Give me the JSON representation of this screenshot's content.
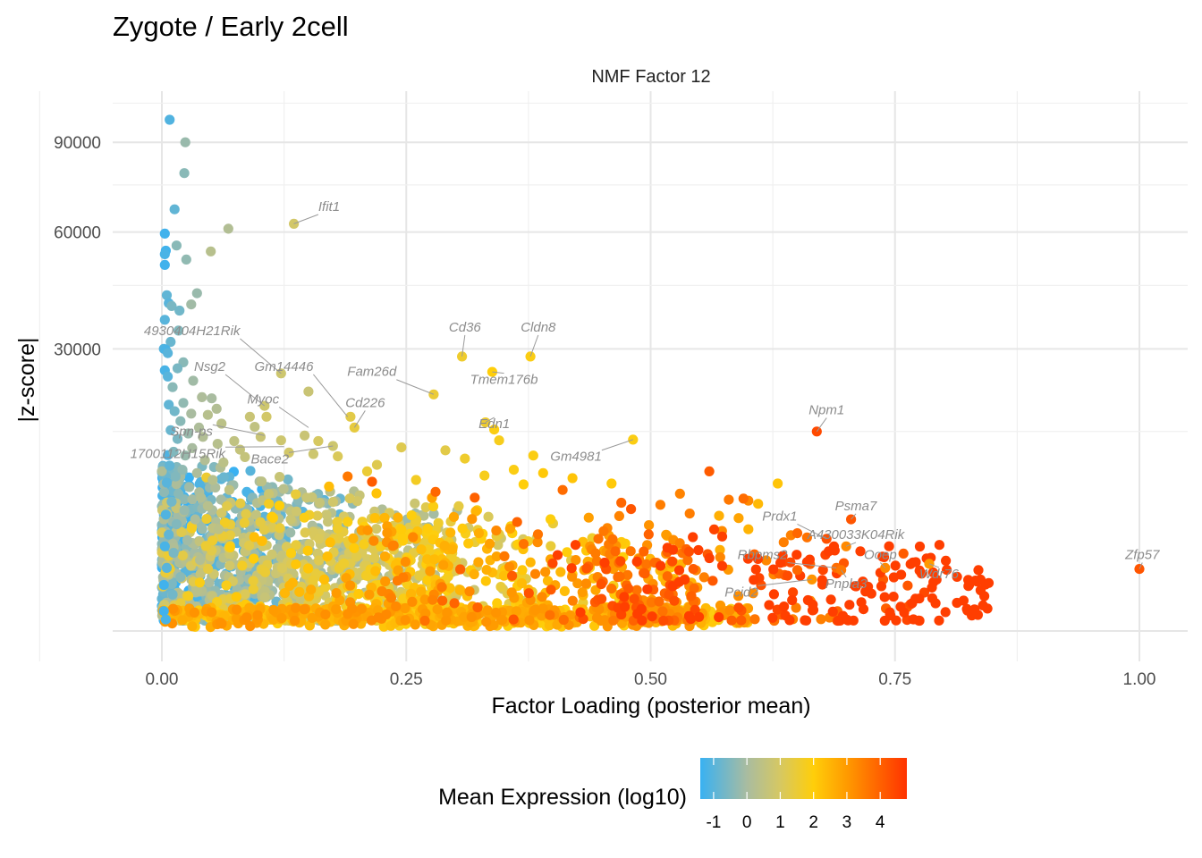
{
  "chart_data": {
    "type": "scatter",
    "title": "Zygote / Early 2cell",
    "panel_title": "NMF Factor 12",
    "xlabel": "Factor Loading (posterior mean)",
    "ylabel": "|z-score|",
    "x_ticks": [
      {
        "value": 0.0,
        "label": "0.00"
      },
      {
        "value": 0.25,
        "label": "0.25"
      },
      {
        "value": 0.5,
        "label": "0.50"
      },
      {
        "value": 0.75,
        "label": "0.75"
      },
      {
        "value": 1.0,
        "label": "1.00"
      }
    ],
    "y_ticks": [
      {
        "value": 30000,
        "label": "30000"
      },
      {
        "value": 60000,
        "label": "60000"
      },
      {
        "value": 90000,
        "label": "90000"
      }
    ],
    "y_scale": "sqrt",
    "xlim": [
      -0.05,
      1.05
    ],
    "ylim": [
      0,
      108000
    ],
    "grid": true,
    "color": {
      "variable": "Mean Expression (log10)",
      "title": "Mean Expression (log10)",
      "range": [
        -1.4,
        4.8
      ],
      "ticks": [
        {
          "value": -1,
          "label": "-1"
        },
        {
          "value": 0,
          "label": "0"
        },
        {
          "value": 1,
          "label": "1"
        },
        {
          "value": 2,
          "label": "2"
        },
        {
          "value": 3,
          "label": "3"
        },
        {
          "value": 4,
          "label": "4"
        }
      ],
      "stops": [
        {
          "value": -1.4,
          "color": "#39B1F2"
        },
        {
          "value": 0.0,
          "color": "#A9BCA0"
        },
        {
          "value": 1.0,
          "color": "#D6C862"
        },
        {
          "value": 2.0,
          "color": "#FFCE0A"
        },
        {
          "value": 3.0,
          "color": "#FF9A00"
        },
        {
          "value": 4.8,
          "color": "#FF3300"
        }
      ]
    },
    "points": [
      {
        "x": 0.008,
        "y": 98500,
        "c": -1.1
      },
      {
        "x": 0.024,
        "y": 90000,
        "c": -0.2
      },
      {
        "x": 0.023,
        "y": 79000,
        "c": -0.4
      },
      {
        "x": 0.013,
        "y": 67000,
        "c": -0.9
      },
      {
        "x": 0.068,
        "y": 61000,
        "c": 0.2
      },
      {
        "x": 0.003,
        "y": 59500,
        "c": -1.3
      },
      {
        "x": 0.015,
        "y": 56000,
        "c": -0.4
      },
      {
        "x": 0.004,
        "y": 54500,
        "c": -1.3
      },
      {
        "x": 0.003,
        "y": 53500,
        "c": -1.2
      },
      {
        "x": 0.05,
        "y": 54300,
        "c": 0.3
      },
      {
        "x": 0.025,
        "y": 52000,
        "c": -0.3
      },
      {
        "x": 0.003,
        "y": 50500,
        "c": -1.3
      },
      {
        "x": 0.036,
        "y": 43000,
        "c": -0.2
      },
      {
        "x": 0.005,
        "y": 42500,
        "c": -0.9
      },
      {
        "x": 0.007,
        "y": 40500,
        "c": -1.0
      },
      {
        "x": 0.01,
        "y": 39800,
        "c": -0.6
      },
      {
        "x": 0.03,
        "y": 40200,
        "c": -0.1
      },
      {
        "x": 0.018,
        "y": 38700,
        "c": -0.7
      },
      {
        "x": 0.003,
        "y": 36500,
        "c": -1.0
      },
      {
        "x": 0.017,
        "y": 34000,
        "c": -0.5
      },
      {
        "x": 0.009,
        "y": 31500,
        "c": -0.8
      },
      {
        "x": 0.002,
        "y": 30000,
        "c": -1.1
      },
      {
        "x": 0.004,
        "y": 29800,
        "c": -1.2
      },
      {
        "x": 0.006,
        "y": 29100,
        "c": -1.0
      },
      {
        "x": 0.022,
        "y": 27200,
        "c": -0.4
      },
      {
        "x": 0.016,
        "y": 26000,
        "c": -0.6
      },
      {
        "x": 0.003,
        "y": 25600,
        "c": -1.2
      },
      {
        "x": 0.006,
        "y": 24400,
        "c": -1.0
      },
      {
        "x": 0.032,
        "y": 23600,
        "c": -0.1
      },
      {
        "x": 0.011,
        "y": 22400,
        "c": -0.4
      },
      {
        "x": 0.041,
        "y": 20600,
        "c": 0.1
      },
      {
        "x": 0.051,
        "y": 20400,
        "c": 0.0
      },
      {
        "x": 0.022,
        "y": 19600,
        "c": -0.3
      },
      {
        "x": 0.007,
        "y": 19300,
        "c": -0.9
      },
      {
        "x": 0.056,
        "y": 18600,
        "c": 0.2
      },
      {
        "x": 0.013,
        "y": 18200,
        "c": -0.7
      },
      {
        "x": 0.03,
        "y": 17800,
        "c": 0.0
      },
      {
        "x": 0.047,
        "y": 17600,
        "c": 0.3
      },
      {
        "x": 0.09,
        "y": 17300,
        "c": 0.7
      },
      {
        "x": 0.019,
        "y": 16600,
        "c": -0.4
      },
      {
        "x": 0.061,
        "y": 16200,
        "c": 0.4
      },
      {
        "x": 0.038,
        "y": 15600,
        "c": 0.1
      },
      {
        "x": 0.009,
        "y": 15200,
        "c": -0.8
      },
      {
        "x": 0.027,
        "y": 14700,
        "c": -0.2
      },
      {
        "x": 0.042,
        "y": 14200,
        "c": 0.2
      },
      {
        "x": 0.016,
        "y": 13900,
        "c": -0.6
      },
      {
        "x": 0.074,
        "y": 13600,
        "c": 0.5
      },
      {
        "x": 0.057,
        "y": 13200,
        "c": 0.3
      },
      {
        "x": 0.031,
        "y": 12600,
        "c": 0.0
      },
      {
        "x": 0.012,
        "y": 12100,
        "c": -0.5
      },
      {
        "x": 0.024,
        "y": 11600,
        "c": -0.2
      },
      {
        "x": 0.085,
        "y": 11400,
        "c": 0.6
      },
      {
        "x": 0.044,
        "y": 11000,
        "c": 0.2
      },
      {
        "x": 0.063,
        "y": 10700,
        "c": 0.4
      },
      {
        "x": 0.008,
        "y": 10300,
        "c": -0.9
      },
      {
        "x": 0.021,
        "y": 9800,
        "c": -0.3
      },
      {
        "x": 0.036,
        "y": 9400,
        "c": 0.1
      },
      {
        "x": 0.014,
        "y": 9000,
        "c": -0.5
      },
      {
        "x": 0.052,
        "y": 8600,
        "c": 0.3
      },
      {
        "x": 0.005,
        "y": 8300,
        "c": -1.0
      },
      {
        "x": 0.028,
        "y": 7800,
        "c": -0.1
      },
      {
        "x": 0.069,
        "y": 7500,
        "c": 0.5
      },
      {
        "x": 0.017,
        "y": 7100,
        "c": -0.4
      },
      {
        "x": 0.04,
        "y": 6700,
        "c": 0.2
      },
      {
        "x": 0.01,
        "y": 6300,
        "c": -0.7
      },
      {
        "x": 0.047,
        "y": 5900,
        "c": 0.3
      },
      {
        "x": 0.023,
        "y": 5500,
        "c": -0.2
      },
      {
        "x": 0.004,
        "y": 5100,
        "c": -1.1
      },
      {
        "x": 0.034,
        "y": 4700,
        "c": 0.1
      },
      {
        "x": 0.015,
        "y": 4300,
        "c": -0.5
      },
      {
        "x": 0.058,
        "y": 3900,
        "c": 0.4
      },
      {
        "x": 0.007,
        "y": 3500,
        "c": -0.9
      },
      {
        "x": 0.026,
        "y": 3100,
        "c": -0.1
      },
      {
        "x": 0.003,
        "y": 2700,
        "c": -1.2
      },
      {
        "x": 0.012,
        "y": 2300,
        "c": -0.6
      },
      {
        "x": 0.039,
        "y": 1900,
        "c": 0.2
      },
      {
        "x": 0.005,
        "y": 1500,
        "c": -1.0
      },
      {
        "x": 0.019,
        "y": 1100,
        "c": -0.4
      },
      {
        "x": 0.002,
        "y": 800,
        "c": -1.3
      },
      {
        "x": 0.011,
        "y": 500,
        "c": -0.7
      },
      {
        "x": 0.002,
        "y": 150,
        "c": -1.3
      },
      {
        "x": 0.004,
        "y": 50,
        "c": -1.2
      },
      {
        "x": 0.15,
        "y": 21600,
        "c": 0.7
      },
      {
        "x": 0.146,
        "y": 14400,
        "c": 0.7
      },
      {
        "x": 0.16,
        "y": 13600,
        "c": 1.0
      },
      {
        "x": 0.175,
        "y": 12900,
        "c": 0.8
      },
      {
        "x": 0.095,
        "y": 15700,
        "c": 0.5
      },
      {
        "x": 0.18,
        "y": 11500,
        "c": 1.1
      },
      {
        "x": 0.22,
        "y": 10400,
        "c": 1.2
      },
      {
        "x": 0.29,
        "y": 12300,
        "c": 1.3
      },
      {
        "x": 0.31,
        "y": 11200,
        "c": 1.6
      },
      {
        "x": 0.245,
        "y": 12700,
        "c": 1.2
      },
      {
        "x": 0.21,
        "y": 9600,
        "c": 1.5
      },
      {
        "x": 0.26,
        "y": 8600,
        "c": 1.7
      },
      {
        "x": 0.33,
        "y": 9100,
        "c": 1.8
      },
      {
        "x": 0.37,
        "y": 8100,
        "c": 2.0
      },
      {
        "x": 0.36,
        "y": 9800,
        "c": 1.9
      },
      {
        "x": 0.39,
        "y": 9400,
        "c": 2.1
      },
      {
        "x": 0.42,
        "y": 8800,
        "c": 2.2
      },
      {
        "x": 0.46,
        "y": 8200,
        "c": 2.1
      },
      {
        "x": 0.38,
        "y": 11600,
        "c": 1.9
      },
      {
        "x": 0.345,
        "y": 13700,
        "c": 1.8
      },
      {
        "x": 0.34,
        "y": 15300,
        "c": 1.9
      },
      {
        "x": 0.19,
        "y": 9000,
        "c": 3.6
      },
      {
        "x": 0.215,
        "y": 8400,
        "c": 4.1
      },
      {
        "x": 0.28,
        "y": 7300,
        "c": 3.9
      },
      {
        "x": 0.32,
        "y": 6700,
        "c": 4.0
      },
      {
        "x": 0.41,
        "y": 7500,
        "c": 3.8
      },
      {
        "x": 0.48,
        "y": 5600,
        "c": 4.2
      },
      {
        "x": 0.47,
        "y": 6200,
        "c": 3.9
      },
      {
        "x": 0.51,
        "y": 6000,
        "c": 3.5
      },
      {
        "x": 0.56,
        "y": 9600,
        "c": 4.1
      },
      {
        "x": 0.53,
        "y": 7100,
        "c": 3.4
      },
      {
        "x": 0.58,
        "y": 6500,
        "c": 3.6
      },
      {
        "x": 0.6,
        "y": 6400,
        "c": 3.3
      },
      {
        "x": 0.61,
        "y": 6100,
        "c": 2.4
      },
      {
        "x": 0.595,
        "y": 6600,
        "c": 3.8
      },
      {
        "x": 0.54,
        "y": 5200,
        "c": 3.5
      },
      {
        "x": 0.57,
        "y": 5000,
        "c": 2.6
      },
      {
        "x": 0.59,
        "y": 4800,
        "c": 2.8
      },
      {
        "x": 0.6,
        "y": 3900,
        "c": 2.5
      },
      {
        "x": 0.63,
        "y": 8200,
        "c": 2.2
      },
      {
        "x": 0.65,
        "y": 3600,
        "c": 3.9
      },
      {
        "x": 0.66,
        "y": 3300,
        "c": 3.7
      },
      {
        "x": 0.67,
        "y": 15000,
        "c": 4.4
      },
      {
        "x": 0.68,
        "y": 3200,
        "c": 4.3
      },
      {
        "x": 0.705,
        "y": 4700,
        "c": 4.2
      },
      {
        "x": 0.7,
        "y": 2700,
        "c": 3.3
      },
      {
        "x": 0.69,
        "y": 1500,
        "c": 3.8
      },
      {
        "x": 0.695,
        "y": 1400,
        "c": 3.6
      },
      {
        "x": 0.65,
        "y": 1400,
        "c": 3.9
      },
      {
        "x": 0.665,
        "y": 1000,
        "c": 3.1
      },
      {
        "x": 0.74,
        "y": 1500,
        "c": 3.3
      },
      {
        "x": 0.785,
        "y": 1700,
        "c": 3.0
      },
      {
        "x": 1.0,
        "y": 1450,
        "c": 4.2
      },
      {
        "x": 0.135,
        "y": 62500,
        "c": 0.9
      },
      {
        "x": 0.122,
        "y": 25000,
        "c": 0.8
      },
      {
        "x": 0.105,
        "y": 19100,
        "c": 0.8
      },
      {
        "x": 0.107,
        "y": 17300,
        "c": 0.9
      },
      {
        "x": 0.193,
        "y": 17300,
        "c": 1.3
      },
      {
        "x": 0.197,
        "y": 15600,
        "c": 1.4
      },
      {
        "x": 0.278,
        "y": 21100,
        "c": 1.5
      },
      {
        "x": 0.307,
        "y": 28400,
        "c": 1.6
      },
      {
        "x": 0.377,
        "y": 28400,
        "c": 1.9
      },
      {
        "x": 0.338,
        "y": 25300,
        "c": 2.0
      },
      {
        "x": 0.331,
        "y": 16400,
        "c": 1.6
      },
      {
        "x": 0.482,
        "y": 13800,
        "c": 1.9
      },
      {
        "x": 0.101,
        "y": 14200,
        "c": 0.7
      },
      {
        "x": 0.122,
        "y": 13700,
        "c": 0.8
      },
      {
        "x": 0.08,
        "y": 12400,
        "c": 0.6
      },
      {
        "x": 0.13,
        "y": 12000,
        "c": 0.9
      },
      {
        "x": 0.155,
        "y": 11800,
        "c": 0.8
      }
    ],
    "bulk": {
      "count": 2200,
      "x_range": [
        0.0,
        0.85
      ],
      "note": "dense cloud of points near the x axis"
    },
    "annotations": [
      {
        "label": "Ifit1",
        "x": 0.135,
        "y": 62500,
        "lx": 0.16,
        "ly": 66500
      },
      {
        "label": "4930404H21Rik",
        "x": 0.122,
        "y": 25000,
        "lx": 0.08,
        "ly": 33000
      },
      {
        "label": "Nsg2",
        "x": 0.105,
        "y": 19100,
        "lx": 0.065,
        "ly": 25500
      },
      {
        "label": "Myoc",
        "x": 0.15,
        "y": 15600,
        "lx": 0.12,
        "ly": 19500
      },
      {
        "label": "Spn-ps",
        "x": 0.105,
        "y": 14400,
        "lx": 0.052,
        "ly": 14400
      },
      {
        "label": "1700112H15Rik",
        "x": 0.125,
        "y": 12800,
        "lx": 0.065,
        "ly": 11300
      },
      {
        "label": "Bace2",
        "x": 0.175,
        "y": 12900,
        "lx": 0.13,
        "ly": 10600
      },
      {
        "label": "Gm14446",
        "x": 0.19,
        "y": 17300,
        "lx": 0.155,
        "ly": 25500
      },
      {
        "label": "Cd226",
        "x": 0.197,
        "y": 15600,
        "lx": 0.208,
        "ly": 18900
      },
      {
        "label": "Fam26d",
        "x": 0.278,
        "y": 21100,
        "lx": 0.24,
        "ly": 24500
      },
      {
        "label": "Cd36",
        "x": 0.307,
        "y": 28400,
        "lx": 0.31,
        "ly": 33800
      },
      {
        "label": "Cldn8",
        "x": 0.377,
        "y": 28400,
        "lx": 0.385,
        "ly": 33800
      },
      {
        "label": "Tmem176b",
        "x": 0.338,
        "y": 25300,
        "lx": 0.35,
        "ly": 23000
      },
      {
        "label": "Edn1",
        "x": 0.331,
        "y": 16400,
        "lx": 0.34,
        "ly": 15500
      },
      {
        "label": "Gm4981",
        "x": 0.482,
        "y": 13800,
        "lx": 0.45,
        "ly": 10900
      },
      {
        "label": "Npm1",
        "x": 0.67,
        "y": 15000,
        "lx": 0.68,
        "ly": 17700
      },
      {
        "label": "Psma7",
        "x": 0.705,
        "y": 4700,
        "lx": 0.71,
        "ly": 5500
      },
      {
        "label": "Prdx1",
        "x": 0.68,
        "y": 3200,
        "lx": 0.65,
        "ly": 4600
      },
      {
        "label": "A430033K04Rik",
        "x": 0.7,
        "y": 2700,
        "lx": 0.71,
        "ly": 3200
      },
      {
        "label": "Rbpms2",
        "x": 0.69,
        "y": 1500,
        "lx": 0.64,
        "ly": 1950
      },
      {
        "label": "Ooep",
        "x": 0.74,
        "y": 1500,
        "lx": 0.735,
        "ly": 1950
      },
      {
        "label": "Zfp57",
        "x": 1.0,
        "y": 1450,
        "lx": 1.003,
        "ly": 1950
      },
      {
        "label": "Wdr76",
        "x": 0.785,
        "y": 1700,
        "lx": 0.795,
        "ly": 1050
      },
      {
        "label": "Pnpla3",
        "x": 0.695,
        "y": 1400,
        "lx": 0.7,
        "ly": 700
      },
      {
        "label": "Pcid2",
        "x": 0.665,
        "y": 1000,
        "lx": 0.61,
        "ly": 450
      }
    ]
  }
}
